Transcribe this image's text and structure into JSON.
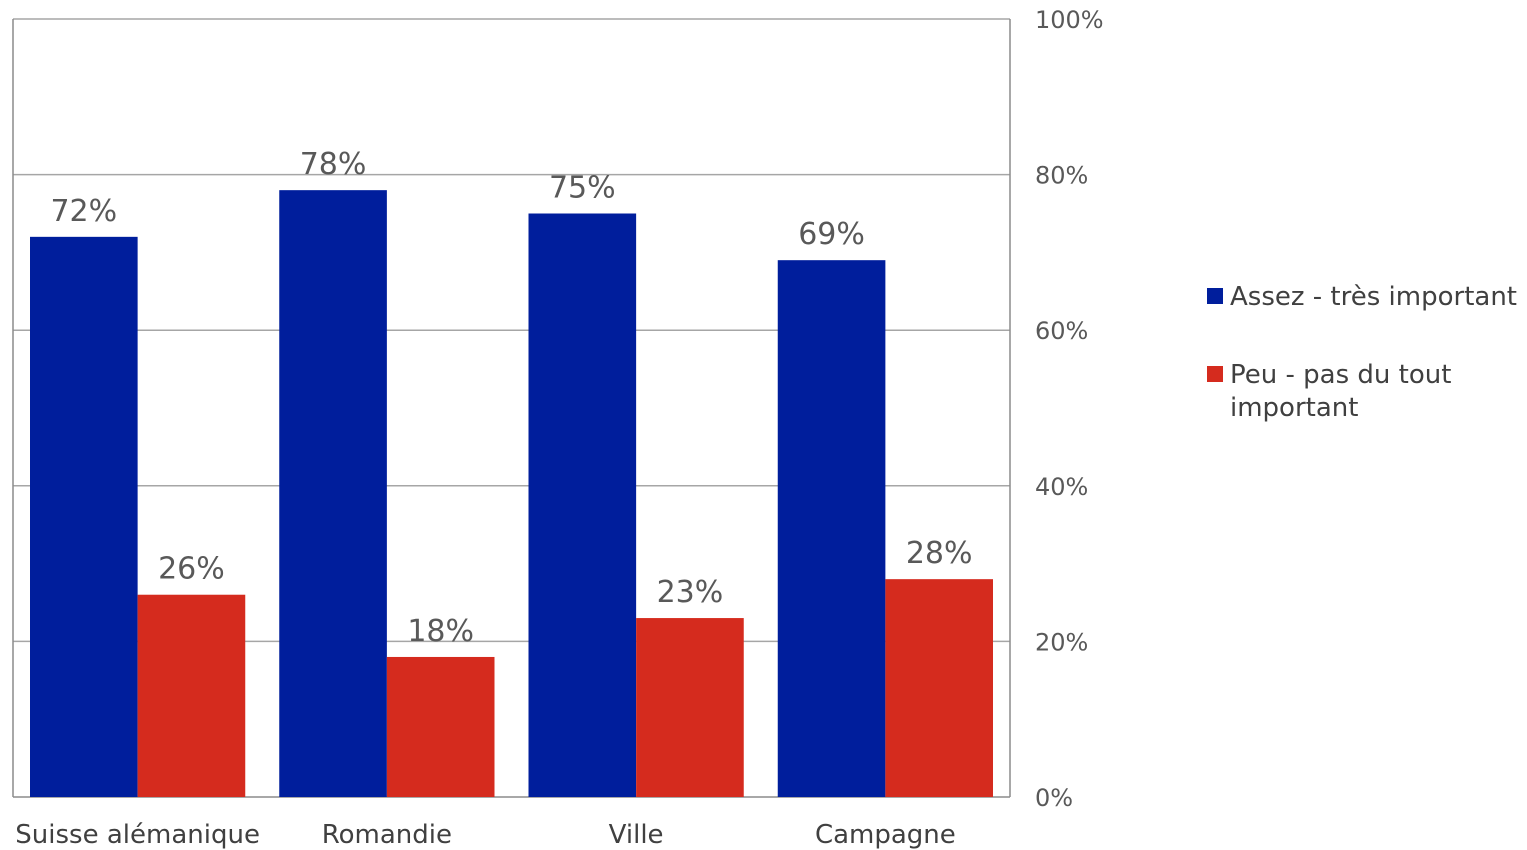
{
  "chart_data": {
    "type": "bar",
    "categories": [
      "Suisse alémanique",
      "Romandie",
      "Ville",
      "Campagne"
    ],
    "series": [
      {
        "name": "Assez - très important",
        "values": [
          72,
          78,
          75,
          69
        ],
        "labels": [
          "72%",
          "78%",
          "75%",
          "69%"
        ],
        "color": "#001e9c"
      },
      {
        "name": "Peu - pas du tout important",
        "values": [
          26,
          18,
          23,
          28
        ],
        "labels": [
          "26%",
          "18%",
          "23%",
          "28%"
        ],
        "color": "#d52b1e"
      }
    ],
    "ylim": [
      0,
      100
    ],
    "yticks": [
      0,
      20,
      40,
      60,
      80,
      100
    ],
    "ytick_labels": [
      "0%",
      "20%",
      "40%",
      "60%",
      "80%",
      "100%"
    ],
    "y_axis_position": "right",
    "grid": true,
    "legend_position": "right",
    "legend_lines": [
      [
        "Assez - très important"
      ],
      [
        "Peu - pas du tout",
        "important"
      ]
    ],
    "title": "",
    "xlabel": "",
    "ylabel": ""
  },
  "colors": {
    "gridline": "#a6a6a6",
    "axis": "#8c8c8c"
  }
}
